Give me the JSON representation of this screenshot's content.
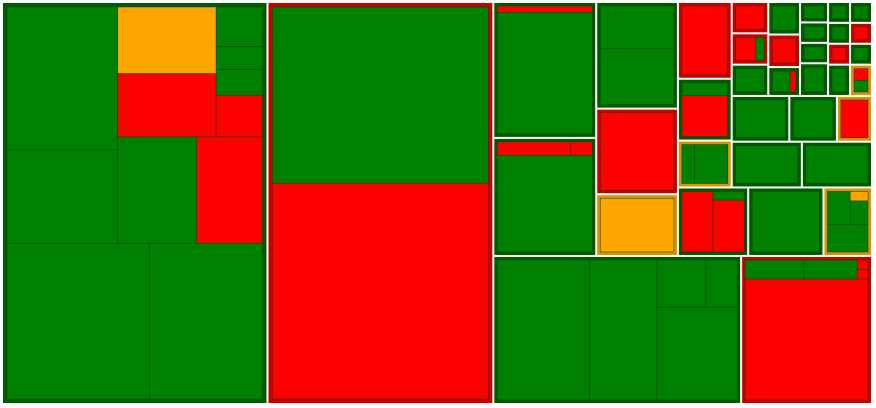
{
  "chart_data": {
    "type": "treemap",
    "children": [
      {
        "border": "#005a00",
        "children": [
          {
            "children": [
              {
                "children": [
                  {
                    "value": 147,
                    "color": "#008000"
                  },
                  {
                    "value": 96,
                    "color": "#008000"
                  }
                ]
              },
              {
                "children": [
                  {
                    "children": [
                      {
                        "children": [
                          {
                            "value": 61,
                            "color": "#ffa500"
                          },
                          {
                            "value": 58,
                            "color": "#ff0000"
                          }
                        ]
                      },
                      {
                        "children": [
                          {
                            "value": 17,
                            "color": "#008000"
                          },
                          {
                            "value": 10,
                            "color": "#008000"
                          },
                          {
                            "value": 11,
                            "color": "#008000"
                          },
                          {
                            "value": 18,
                            "color": "#ff0000"
                          }
                        ]
                      }
                    ]
                  },
                  {
                    "children": [
                      {
                        "value": 78,
                        "color": "#008000"
                      },
                      {
                        "value": 65,
                        "color": "#ff0000"
                      }
                    ]
                  }
                ]
              }
            ]
          },
          {
            "children": [
              {
                "value": 206,
                "color": "#008000"
              },
              {
                "value": 164,
                "color": "#008000"
              }
            ]
          }
        ]
      },
      {
        "border": "#c80000",
        "children": [
          {
            "value": 356,
            "color": "#008000"
          },
          {
            "value": 436,
            "color": "#ff0000"
          }
        ]
      },
      {
        "children": [
          {
            "children": [
              {
                "children": [
                  {
                    "border": "#005a00",
                    "children": [
                      {
                        "value": 6,
                        "color": "#ff0000"
                      },
                      {
                        "value": 116,
                        "color": "#008000"
                      }
                    ]
                  },
                  {
                    "border": "#005a00",
                    "children": [
                      {
                        "children": [
                          {
                            "value": 10,
                            "color": "#ff0000"
                          },
                          {
                            "value": 3,
                            "color": "#ff0000"
                          }
                        ]
                      },
                      {
                        "value": 93,
                        "color": "#008000"
                      }
                    ]
                  }
                ]
              },
              {
                "children": [
                  {
                    "border": "#005a00",
                    "children": [
                      {
                        "value": 33,
                        "color": "#008000"
                      },
                      {
                        "value": 43,
                        "color": "#008000"
                      }
                    ]
                  },
                  {
                    "border": "#c80000",
                    "value": 61,
                    "color": "#ff0000"
                  },
                  {
                    "border": "#d99200",
                    "value": 44,
                    "color": "#ffa500"
                  }
                ]
              },
              {
                "children": [
                  {
                    "children": [
                      {
                        "children": [
                          {
                            "border": "#c80000",
                            "value": 36,
                            "color": "#ff0000"
                          },
                          {
                            "border": "#005a00",
                            "children": [
                              {
                                "value": 7,
                                "color": "#008000"
                              },
                              {
                                "value": 22,
                                "color": "#ff0000"
                              }
                            ]
                          },
                          {
                            "border": "#d99200",
                            "children": [
                              {
                                "value": 6,
                                "color": "#008000"
                              },
                              {
                                "value": 16,
                                "color": "#008000"
                              }
                            ]
                          }
                        ]
                      },
                      {
                        "children": [
                          {
                            "children": [
                              {
                                "children": [
                                  {
                                    "border": "#c80000",
                                    "value": 10,
                                    "color": "#ff0000"
                                  },
                                  {
                                    "border": "#c80000",
                                    "children": [
                                      {
                                        "value": 7,
                                        "color": "#ff0000"
                                      },
                                      {
                                        "value": 3,
                                        "color": "#008000"
                                      }
                                    ]
                                  },
                                  {
                                    "border": "#005a00",
                                    "value": 10,
                                    "color": "#008000"
                                  }
                                ]
                              },
                              {
                                "children": [
                                  {
                                    "border": "#005a00",
                                    "value": 9,
                                    "color": "#008000"
                                  },
                                  {
                                    "border": "#c80000",
                                    "value": 9,
                                    "color": "#ff0000"
                                  },
                                  {
                                    "border": "#005a00",
                                    "children": [
                                      {
                                        "value": 6,
                                        "color": "#008000"
                                      },
                                      {
                                        "value": 2,
                                        "color": "#ff0000"
                                      }
                                    ]
                                  }
                                ]
                              },
                              {
                                "children": [
                                  {
                                    "border": "#005a00",
                                    "value": 5,
                                    "color": "#008000"
                                  },
                                  {
                                    "border": "#005a00",
                                    "value": 5,
                                    "color": "#008000"
                                  },
                                  {
                                    "border": "#005a00",
                                    "value": 5,
                                    "color": "#008000"
                                  },
                                  {
                                    "border": "#005a00",
                                    "value": 8,
                                    "color": "#008000"
                                  }
                                ]
                              },
                              {
                                "children": [
                                  {
                                    "border": "#005a00",
                                    "value": 4,
                                    "color": "#008000"
                                  },
                                  {
                                    "border": "#005a00",
                                    "value": 4,
                                    "color": "#008000"
                                  },
                                  {
                                    "border": "#c80000",
                                    "value": 4,
                                    "color": "#ff0000"
                                  },
                                  {
                                    "border": "#005a00",
                                    "value": 6,
                                    "color": "#008000"
                                  }
                                ]
                              },
                              {
                                "children": [
                                  {
                                    "border": "#005a00",
                                    "children": [
                                      {
                                        "value": 2,
                                        "color": "#008000"
                                      },
                                      {
                                        "value": 2,
                                        "color": "#008000"
                                      }
                                    ]
                                  },
                                  {
                                    "border": "#c80000",
                                    "value": 4,
                                    "color": "#ff0000"
                                  },
                                  {
                                    "border": "#005a00",
                                    "value": 4,
                                    "color": "#008000"
                                  },
                                  {
                                    "border": "#d99200",
                                    "children": [
                                      {
                                        "value": 3,
                                        "color": "#ff0000"
                                      },
                                      {
                                        "value": 3,
                                        "color": "#008000"
                                      }
                                    ]
                                  }
                                ]
                              }
                            ]
                          },
                          {
                            "children": [
                              {
                                "border": "#005a00",
                                "value": 23,
                                "color": "#008000"
                              },
                              {
                                "border": "#005a00",
                                "value": 19,
                                "color": "#008000"
                              },
                              {
                                "border": "#d99200",
                                "value": 14,
                                "color": "#ff0000"
                              }
                            ]
                          },
                          {
                            "children": [
                              {
                                "border": "#005a00",
                                "value": 28,
                                "color": "#008000"
                              },
                              {
                                "border": "#005a00",
                                "value": 28,
                                "color": "#008000"
                              }
                            ]
                          }
                        ]
                      }
                    ]
                  },
                  {
                    "children": [
                      {
                        "border": "#005a00",
                        "children": [
                          {
                            "value": 21,
                            "color": "#ff0000"
                          },
                          {
                            "children": [
                              {
                                "value": 3,
                                "color": "#008000"
                              },
                              {
                                "value": 18,
                                "color": "#ff0000"
                              }
                            ]
                          }
                        ]
                      },
                      {
                        "border": "#005a00",
                        "value": 45,
                        "color": "#008000"
                      },
                      {
                        "border": "#d99200",
                        "children": [
                          {
                            "children": [
                              {
                                "value": 9,
                                "color": "#008000"
                              },
                              {
                                "children": [
                                  {
                                    "value": 2,
                                    "color": "#ffa500"
                                  },
                                  {
                                    "value": 5,
                                    "color": "#008000"
                                  }
                                ]
                              }
                            ]
                          },
                          {
                            "value": 13,
                            "color": "#008000"
                          }
                        ]
                      }
                    ]
                  }
                ]
              }
            ]
          },
          {
            "children": [
              {
                "border": "#005a00",
                "children": [
                  {
                    "value": 123,
                    "color": "#008000"
                  },
                  {
                    "value": 90,
                    "color": "#008000"
                  },
                  {
                    "children": [
                      {
                        "children": [
                          {
                            "value": 22,
                            "color": "#008000"
                          },
                          {
                            "value": 14,
                            "color": "#008000"
                          }
                        ]
                      },
                      {
                        "value": 71,
                        "color": "#008000"
                      }
                    ]
                  }
                ]
              },
              {
                "border": "#c80000",
                "children": [
                  {
                    "children": [
                      {
                        "value": 11,
                        "color": "#008000"
                      },
                      {
                        "value": 10,
                        "color": "#008000"
                      },
                      {
                        "children": [
                          {
                            "value": 1,
                            "color": "#ff0000"
                          },
                          {
                            "value": 1,
                            "color": "#ff0000"
                          }
                        ]
                      }
                    ]
                  },
                  {
                    "value": 146,
                    "color": "#ff0000"
                  }
                ]
              }
            ]
          }
        ]
      }
    ]
  }
}
